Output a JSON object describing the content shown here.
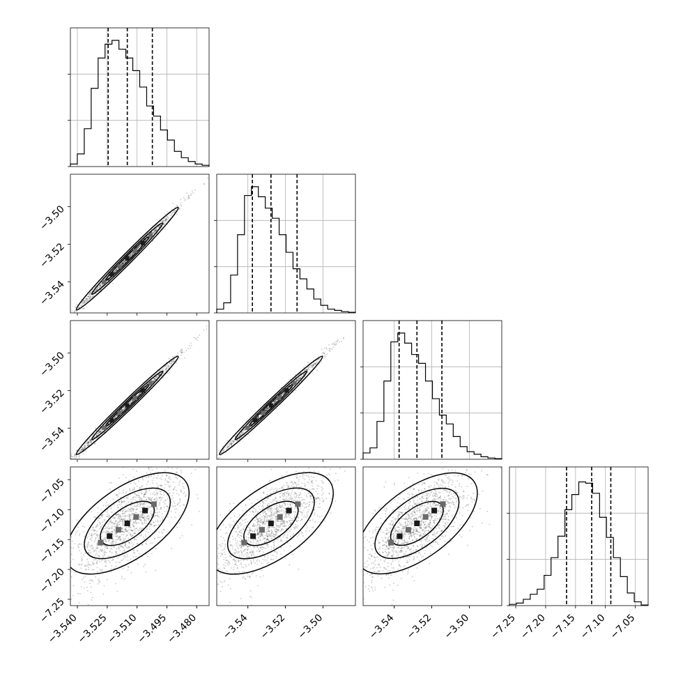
{
  "chart_data": {
    "type": "corner",
    "title": "",
    "parameters": [
      {
        "axis_range": [
          -3.5435,
          -3.4738
        ],
        "ticks": [
          "−3.540",
          "−3.525",
          "−3.510",
          "−3.495",
          "−3.480"
        ],
        "tick_values": [
          -3.54,
          -3.525,
          -3.51,
          -3.495,
          -3.48
        ],
        "quantiles": [
          -3.5245,
          -3.5149,
          -3.5023
        ],
        "hist_bins": [
          0.02,
          0.1,
          0.3,
          0.62,
          0.86,
          0.97,
          1.0,
          0.93,
          0.86,
          0.76,
          0.63,
          0.48,
          0.4,
          0.29,
          0.21,
          0.12,
          0.07,
          0.04,
          0.02,
          0.01
        ]
      },
      {
        "axis_range": [
          -3.5566,
          -3.4827
        ],
        "ticks": [
          "−3.54",
          "−3.52",
          "−3.50"
        ],
        "tick_values": [
          -3.54,
          -3.52,
          -3.5
        ],
        "quantiles": [
          -3.5376,
          -3.5277,
          -3.5138
        ],
        "hist_bins": [
          0.03,
          0.08,
          0.3,
          0.62,
          0.93,
          1.0,
          0.92,
          0.83,
          0.75,
          0.62,
          0.48,
          0.35,
          0.27,
          0.19,
          0.11,
          0.06,
          0.03,
          0.02,
          0.01,
          0.005
        ]
      },
      {
        "axis_range": [
          -3.5566,
          -3.4827
        ],
        "ticks": [
          "−3.54",
          "−3.52",
          "−3.50"
        ],
        "tick_values": [
          -3.54,
          -3.52,
          -3.5
        ],
        "quantiles": [
          -3.5374,
          -3.5279,
          -3.5146
        ],
        "hist_bins": [
          0.05,
          0.09,
          0.3,
          0.62,
          0.93,
          1.0,
          0.92,
          0.83,
          0.76,
          0.62,
          0.48,
          0.35,
          0.28,
          0.18,
          0.1,
          0.06,
          0.04,
          0.02,
          0.01,
          0.005
        ]
      },
      {
        "axis_range": [
          -7.2605,
          -7.0286
        ],
        "ticks": [
          "−7.25",
          "−7.20",
          "−7.15",
          "−7.10",
          "−7.05"
        ],
        "tick_values": [
          -7.25,
          -7.2,
          -7.15,
          -7.1,
          -7.05
        ],
        "quantiles": [
          -7.165,
          -7.123,
          -7.091
        ],
        "hist_bins": [
          0.01,
          0.02,
          0.05,
          0.09,
          0.13,
          0.24,
          0.38,
          0.55,
          0.76,
          0.88,
          0.98,
          0.97,
          0.89,
          0.7,
          0.54,
          0.38,
          0.23,
          0.1,
          0.03,
          0.005
        ]
      }
    ],
    "grid": true,
    "contour_levels": 3
  }
}
